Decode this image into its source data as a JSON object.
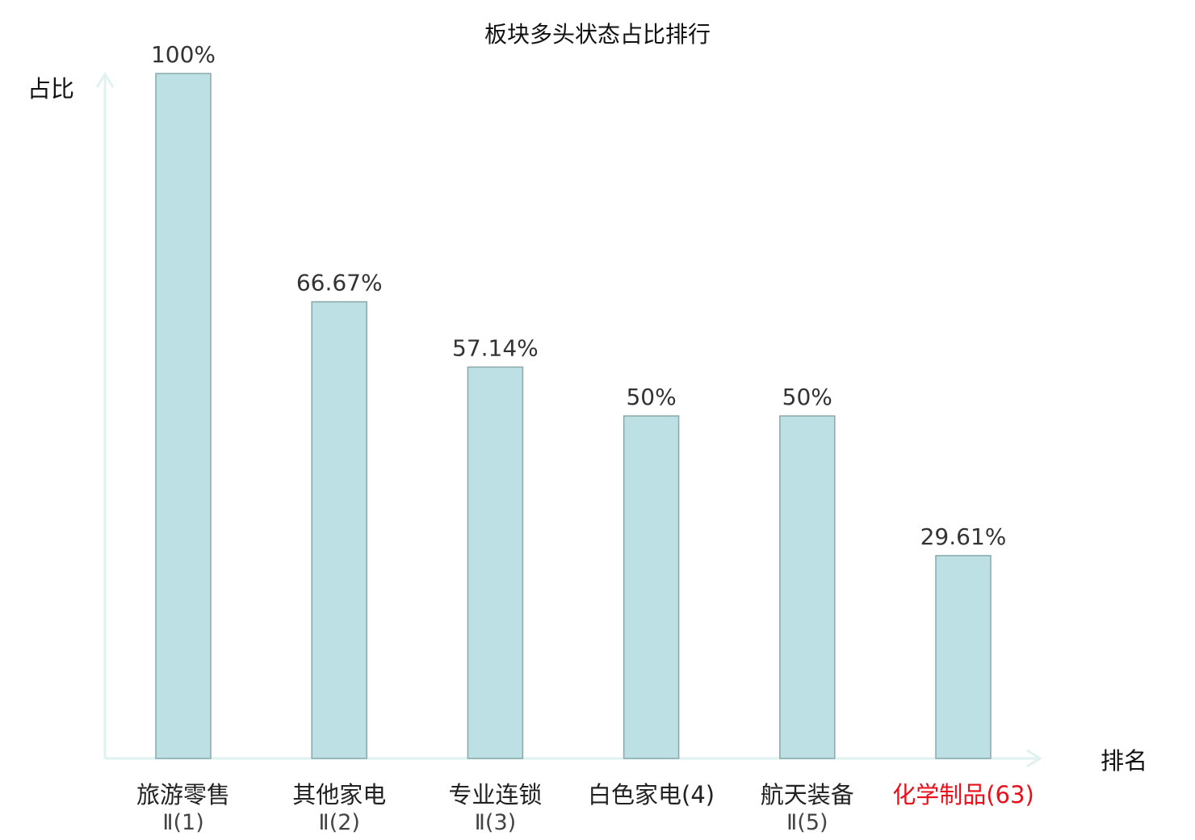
{
  "chart_data": {
    "type": "bar",
    "title": "板块多头状态占比排行",
    "xlabel": "排名",
    "ylabel": "占比",
    "categories": [
      [
        "旅游零售",
        "Ⅱ(1)"
      ],
      [
        "其他家电",
        "Ⅱ(2)"
      ],
      [
        "专业连锁",
        "Ⅱ(3)"
      ],
      [
        "白色家电(4)"
      ],
      [
        "航天装备",
        "Ⅱ(5)"
      ],
      [
        "化学制品(63)"
      ]
    ],
    "values": [
      100,
      66.67,
      57.14,
      50,
      50,
      29.61
    ],
    "data_labels": [
      "100%",
      "66.67%",
      "57.14%",
      "50%",
      "50%",
      "29.61%"
    ],
    "highlight_index": 5,
    "ylim": [
      0,
      100
    ],
    "grid": false,
    "colors": {
      "bar_fill": "#bce0e3",
      "bar_stroke": "#8aa8aa",
      "axis": "#dff2f0",
      "label": "#222222",
      "highlight_label": "#e8101a"
    }
  }
}
